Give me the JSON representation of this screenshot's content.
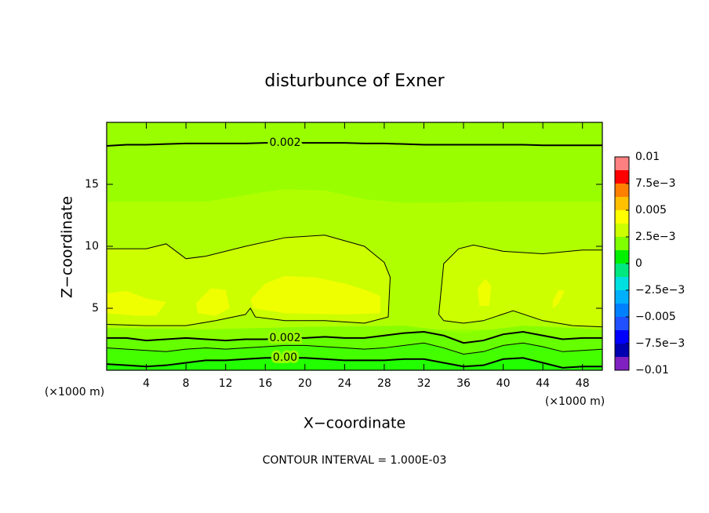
{
  "chart_data": {
    "type": "contour",
    "title": "disturbunce of Exner",
    "xlabel": "X−coordinate",
    "ylabel": "Z−coordinate",
    "x_unit": "(×1000 m)",
    "z_unit": "(×1000 m)",
    "note": "CONTOUR INTERVAL = 1.000E-03",
    "xlim": [
      0,
      50
    ],
    "ylim": [
      0,
      20
    ],
    "xticks": [
      4,
      8,
      12,
      16,
      20,
      24,
      28,
      32,
      36,
      40,
      44,
      48
    ],
    "yticks": [
      5,
      10,
      15
    ],
    "background": "#99ff00",
    "fills": [
      {
        "color": "#b0ff00",
        "x": [
          0,
          10,
          16,
          18,
          22,
          26,
          30,
          40,
          50,
          50,
          0
        ],
        "z": [
          13.6,
          13.6,
          14.4,
          14.6,
          14.5,
          13.8,
          13.5,
          13.6,
          13.6,
          3.3,
          3.3
        ]
      },
      {
        "color": "#88ff00",
        "x": [
          0,
          10,
          20,
          30,
          36,
          42,
          50,
          50,
          0
        ],
        "z": [
          3.4,
          3.3,
          3.5,
          3.6,
          3.0,
          3.6,
          3.3,
          0,
          0
        ]
      }
    ],
    "contours": [
      {
        "level": 0.002,
        "label": "0.002",
        "x": [
          0,
          2,
          4,
          6,
          8,
          10,
          12,
          14,
          16,
          18,
          20,
          22,
          24,
          26,
          28,
          30,
          32,
          34,
          36,
          38,
          40,
          42,
          44,
          46,
          48,
          50
        ],
        "z": [
          18.1,
          18.2,
          18.2,
          18.25,
          18.3,
          18.3,
          18.3,
          18.3,
          18.35,
          18.35,
          18.35,
          18.35,
          18.35,
          18.3,
          18.3,
          18.25,
          18.2,
          18.2,
          18.2,
          18.2,
          18.2,
          18.2,
          18.15,
          18.15,
          18.15,
          18.15
        ]
      },
      {
        "level": 0.003,
        "fill": "#ccff00",
        "x": [
          0,
          4,
          6,
          8,
          10,
          14,
          18,
          22,
          26,
          28,
          28.6,
          28.4,
          26,
          22,
          18,
          15,
          14.5,
          14,
          11,
          8,
          4,
          0
        ],
        "z": [
          9.8,
          9.8,
          10.2,
          9,
          9.2,
          10,
          10.7,
          10.9,
          10,
          8.7,
          7.5,
          4.3,
          3.8,
          4,
          4,
          4.3,
          5,
          4.5,
          4,
          3.6,
          3.6,
          3.7
        ]
      },
      {
        "level": 0.003,
        "fill": "#ccff00",
        "x": [
          50,
          48,
          44,
          40,
          37,
          35.5,
          34,
          33.5,
          34,
          36,
          38,
          41,
          44,
          47,
          50
        ],
        "z": [
          9.7,
          9.7,
          9.4,
          9.6,
          10.1,
          9.8,
          8.6,
          4.5,
          4,
          3.8,
          4,
          4.8,
          4,
          3.6,
          3.5
        ]
      },
      {
        "level": 0.002,
        "label": "0.002",
        "fill_below": "#66ff00",
        "x": [
          0,
          2,
          4,
          6,
          8,
          10,
          12,
          14,
          16,
          18,
          20,
          22,
          24,
          26,
          28,
          30,
          32,
          34,
          36,
          38,
          40,
          42,
          44,
          46,
          48,
          50
        ],
        "z": [
          2.6,
          2.6,
          2.4,
          2.5,
          2.6,
          2.5,
          2.4,
          2.5,
          2.5,
          2.6,
          2.6,
          2.7,
          2.6,
          2.6,
          2.8,
          3.0,
          3.1,
          2.8,
          2.2,
          2.4,
          2.9,
          3.1,
          2.8,
          2.5,
          2.6,
          2.6
        ]
      },
      {
        "level": 0.001,
        "fill_below": "#44ff00",
        "x": [
          0,
          2,
          4,
          6,
          8,
          10,
          12,
          14,
          16,
          18,
          20,
          22,
          24,
          26,
          28,
          30,
          32,
          34,
          36,
          38,
          40,
          42,
          44,
          46,
          48,
          50
        ],
        "z": [
          1.8,
          1.7,
          1.6,
          1.5,
          1.7,
          1.8,
          1.7,
          1.8,
          1.9,
          2.0,
          2.0,
          1.9,
          1.8,
          1.7,
          1.8,
          2.0,
          2.2,
          1.8,
          1.3,
          1.5,
          2.0,
          2.2,
          1.9,
          1.5,
          1.6,
          1.7
        ]
      },
      {
        "level": 0,
        "label": "0.00",
        "fill_below": "#22ff00",
        "x": [
          0,
          2,
          4,
          6,
          8,
          10,
          12,
          14,
          16,
          18,
          20,
          22,
          24,
          26,
          28,
          30,
          32,
          34,
          36,
          38,
          40,
          42,
          44,
          46,
          48,
          50
        ],
        "z": [
          0.5,
          0.4,
          0.3,
          0.4,
          0.6,
          0.8,
          0.8,
          0.9,
          1.0,
          1.0,
          1.0,
          0.9,
          0.8,
          0.8,
          0.8,
          0.9,
          0.9,
          0.6,
          0.3,
          0.4,
          0.9,
          1.0,
          0.6,
          0.2,
          0.3,
          0.3
        ]
      }
    ],
    "patches": [
      {
        "color": "#f0ff00",
        "x": [
          14.5,
          16,
          18,
          21,
          24,
          26,
          27.6,
          27.6,
          24,
          18,
          14.8
        ],
        "z": [
          5.7,
          7,
          7.6,
          7.5,
          7,
          6.5,
          6,
          4.6,
          4.5,
          4.6,
          5
        ]
      },
      {
        "color": "#f0ff00",
        "x": [
          0,
          2,
          4,
          6,
          5,
          3,
          0
        ],
        "z": [
          6.2,
          6.4,
          5.8,
          5.5,
          4.4,
          4.4,
          4.6
        ]
      },
      {
        "color": "#f0ff00",
        "x": [
          9,
          10.5,
          12,
          12.4,
          11,
          9.2
        ],
        "z": [
          5.4,
          6.6,
          6.5,
          5,
          4.4,
          4.6
        ]
      },
      {
        "color": "#f0ff00",
        "x": [
          37.4,
          38.2,
          38.8,
          38.6,
          37.6
        ],
        "z": [
          6.6,
          7.4,
          6.8,
          5.2,
          5.2
        ]
      },
      {
        "color": "#f0ff00",
        "x": [
          45,
          45.6,
          46.2,
          45.6,
          45
        ],
        "z": [
          5.6,
          6.5,
          6.4,
          5.4,
          5
        ]
      }
    ],
    "colorbar": {
      "lim": [
        -0.01,
        0.01
      ],
      "levels": [
        -0.01,
        -0.00875,
        -0.0075,
        -0.00625,
        -0.005,
        -0.00375,
        -0.0025,
        -0.00125,
        0,
        0.00125,
        0.0025,
        0.00375,
        0.005,
        0.00625,
        0.0075,
        0.00875,
        0.01
      ],
      "colors": [
        "#8020c0",
        "#0000b0",
        "#0000ff",
        "#2050ff",
        "#0080ff",
        "#00b0ff",
        "#00e0e0",
        "#00e880",
        "#00f000",
        "#80ff00",
        "#ccff00",
        "#ffff00",
        "#ffc000",
        "#ff8000",
        "#ff0000",
        "#ff8080"
      ],
      "ticks": [
        0.01,
        {
          "value": 0.0075,
          "label": "7.5e−3"
        },
        0.005,
        {
          "value": 0.0025,
          "label": "2.5e−3"
        },
        0,
        {
          "value": -0.0025,
          "label": "−2.5e−3"
        },
        {
          "value": -0.005,
          "label": "−0.005"
        },
        {
          "value": -0.0075,
          "label": "−7.5e−3"
        },
        {
          "value": -0.01,
          "label": "−0.01"
        }
      ]
    }
  }
}
